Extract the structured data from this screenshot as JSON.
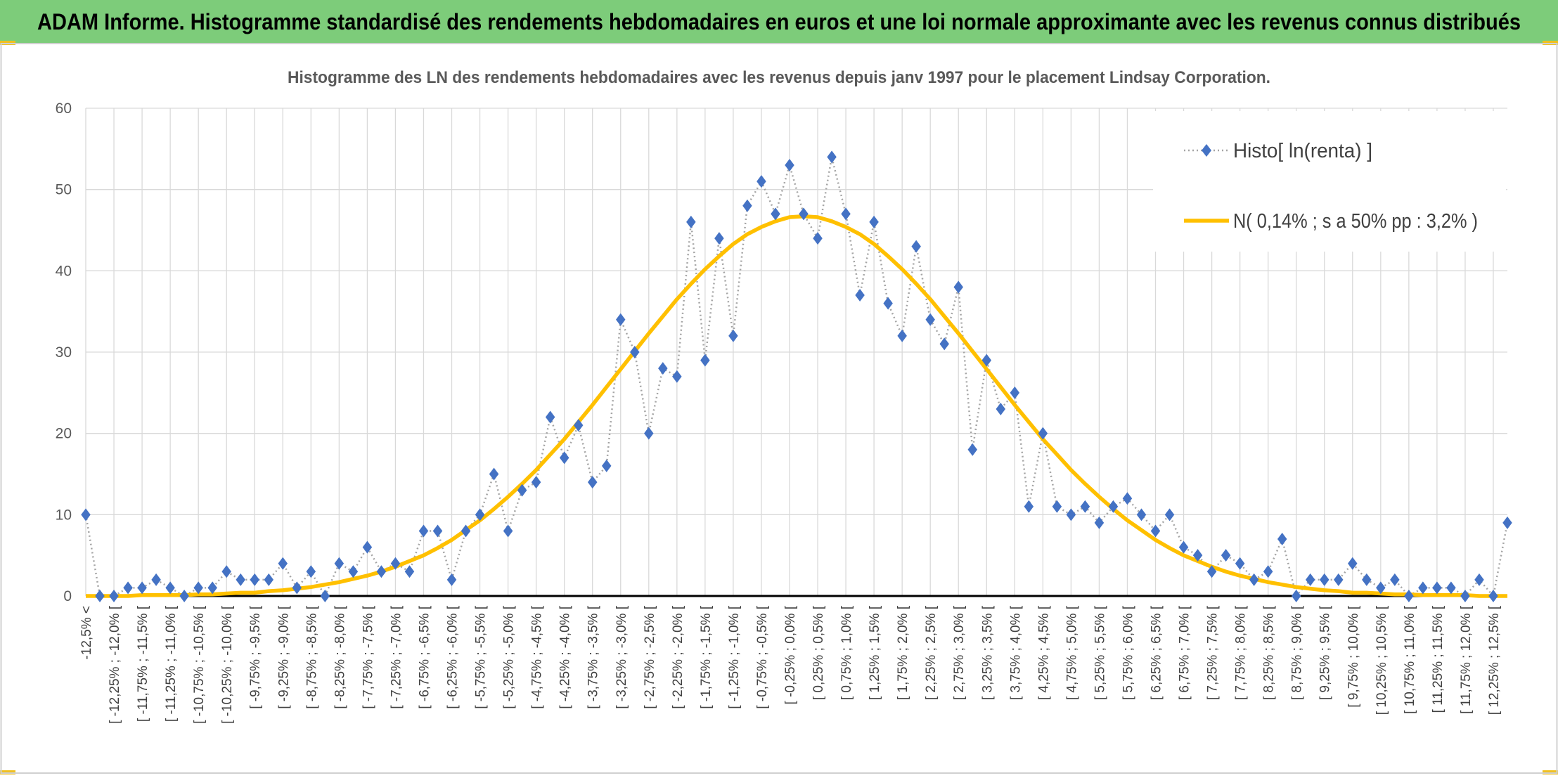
{
  "chart_data": {
    "type": "line",
    "title": "ADAM Informe. Histogramme standardisé des rendements hebdomadaires en euros et une loi normale approximante avec les revenus connus distribués",
    "subtitle": "Histogramme des LN des rendements hebdomadaires avec les revenus depuis janv 1997 pour le placement Lindsay Corporation.",
    "categories": [
      "-12,5% <",
      null,
      "[ -12,25% ; -12,0% [",
      null,
      "[ -11,75% ; -11,5% [",
      null,
      "[ -11,25% ; -11,0% [",
      null,
      "[ -10,75% ; -10,5% [",
      null,
      "[ -10,25% ; -10,0% [",
      null,
      "[ -9,75% ; -9,5% [",
      null,
      "[ -9,25% ; -9,0% [",
      null,
      "[ -8,75% ; -8,5% [",
      null,
      "[ -8,25% ; -8,0% [",
      null,
      "[ -7,75% ; -7,5% [",
      null,
      "[ -7,25% ; -7,0% [",
      null,
      "[ -6,75% ; -6,5% [",
      null,
      "[ -6,25% ; -6,0% [",
      null,
      "[ -5,75% ; -5,5% [",
      null,
      "[ -5,25% ; -5,0% [",
      null,
      "[ -4,75% ; -4,5% [",
      null,
      "[ -4,25% ; -4,0% [",
      null,
      "[ -3,75% ; -3,5% [",
      null,
      "[ -3,25% ; -3,0% [",
      null,
      "[ -2,75% ; -2,5% [",
      null,
      "[ -2,25% ; -2,0% [",
      null,
      "[ -1,75% ; -1,5% [",
      null,
      "[ -1,25% ; -1,0% [",
      null,
      "[ -0,75% ; -0,5% [",
      null,
      "[ -0,25% ; 0,0% [",
      null,
      "[ 0,25% ; 0,5% [",
      null,
      "[ 0,75% ; 1,0% [",
      null,
      "[ 1,25% ; 1,5% [",
      null,
      "[ 1,75% ; 2,0% [",
      null,
      "[ 2,25% ; 2,5% [",
      null,
      "[ 2,75% ; 3,0% [",
      null,
      "[ 3,25% ; 3,5% [",
      null,
      "[ 3,75% ; 4,0% [",
      null,
      "[ 4,25% ; 4,5% [",
      null,
      "[ 4,75% ; 5,0% [",
      null,
      "[ 5,25% ; 5,5% [",
      null,
      "[ 5,75% ; 6,0% [",
      null,
      "[ 6,25% ; 6,5% [",
      null,
      "[ 6,75% ; 7,0% [",
      null,
      "[ 7,25% ; 7,5% [",
      null,
      "[ 7,75% ; 8,0% [",
      null,
      "[ 8,25% ; 8,5% [",
      null,
      "[ 8,75% ; 9,0% [",
      null,
      "[ 9,25% ; 9,5% [",
      null,
      "[ 9,75% ; 10,0% [",
      null,
      "[ 10,25% ; 10,5% [",
      null,
      "[ 10,75% ; 11,0% [",
      null,
      "[ 11,25% ; 11,5% [",
      null,
      "[ 11,75% ; 12,0% [",
      null,
      "[ 12,25% ; 12,5% [",
      null
    ],
    "series": [
      {
        "name": "Histo[ ln(renta) ]",
        "color": "#4472c4",
        "line_color": "#a5a5a5",
        "values": [
          10,
          0,
          0,
          1,
          1,
          2,
          1,
          0,
          1,
          1,
          3,
          2,
          2,
          2,
          4,
          1,
          3,
          0,
          4,
          3,
          6,
          3,
          4,
          3,
          8,
          8,
          2,
          8,
          10,
          15,
          8,
          13,
          14,
          22,
          17,
          21,
          14,
          16,
          34,
          30,
          20,
          28,
          27,
          46,
          29,
          44,
          32,
          48,
          51,
          47,
          53,
          47,
          44,
          54,
          47,
          37,
          46,
          36,
          32,
          43,
          34,
          31,
          38,
          18,
          29,
          23,
          25,
          11,
          20,
          11,
          10,
          11,
          9,
          11,
          12,
          10,
          8,
          10,
          6,
          5,
          3,
          5,
          4,
          2,
          3,
          7,
          0,
          2,
          2,
          2,
          4,
          2,
          1,
          2,
          0,
          1,
          1,
          1,
          0,
          2,
          0,
          9
        ]
      },
      {
        "name": "N( 0,14% ; s a 50% pp : 3,2% )",
        "color": "#ffc000",
        "values": [
          0,
          0,
          0,
          0,
          0.1,
          0.1,
          0.1,
          0.1,
          0.2,
          0.2,
          0.3,
          0.4,
          0.4,
          0.6,
          0.7,
          0.9,
          1.1,
          1.4,
          1.7,
          2.1,
          2.5,
          3.0,
          3.6,
          4.3,
          5.0,
          5.9,
          6.9,
          8.1,
          9.3,
          10.7,
          12.2,
          13.8,
          15.5,
          17.4,
          19.3,
          21.4,
          23.5,
          25.7,
          27.9,
          30.1,
          32.3,
          34.4,
          36.5,
          38.4,
          40.2,
          41.8,
          43.3,
          44.5,
          45.4,
          46.1,
          46.6,
          46.7,
          46.6,
          46.1,
          45.4,
          44.5,
          43.3,
          41.8,
          40.2,
          38.4,
          36.5,
          34.4,
          32.3,
          30.1,
          27.9,
          25.7,
          23.5,
          21.4,
          19.3,
          17.4,
          15.5,
          13.8,
          12.2,
          10.7,
          9.3,
          8.1,
          6.9,
          5.9,
          5.0,
          4.3,
          3.6,
          3.0,
          2.5,
          2.1,
          1.7,
          1.4,
          1.1,
          0.9,
          0.7,
          0.6,
          0.4,
          0.4,
          0.3,
          0.2,
          0.2,
          0.1,
          0.1,
          0.1,
          0.1,
          0,
          0,
          0
        ]
      }
    ],
    "ylim": [
      0,
      60
    ],
    "yticks": [
      0,
      10,
      20,
      30,
      40,
      50,
      60
    ],
    "grid": true,
    "legend": "top-right",
    "header_color": "#7dcc7a"
  }
}
